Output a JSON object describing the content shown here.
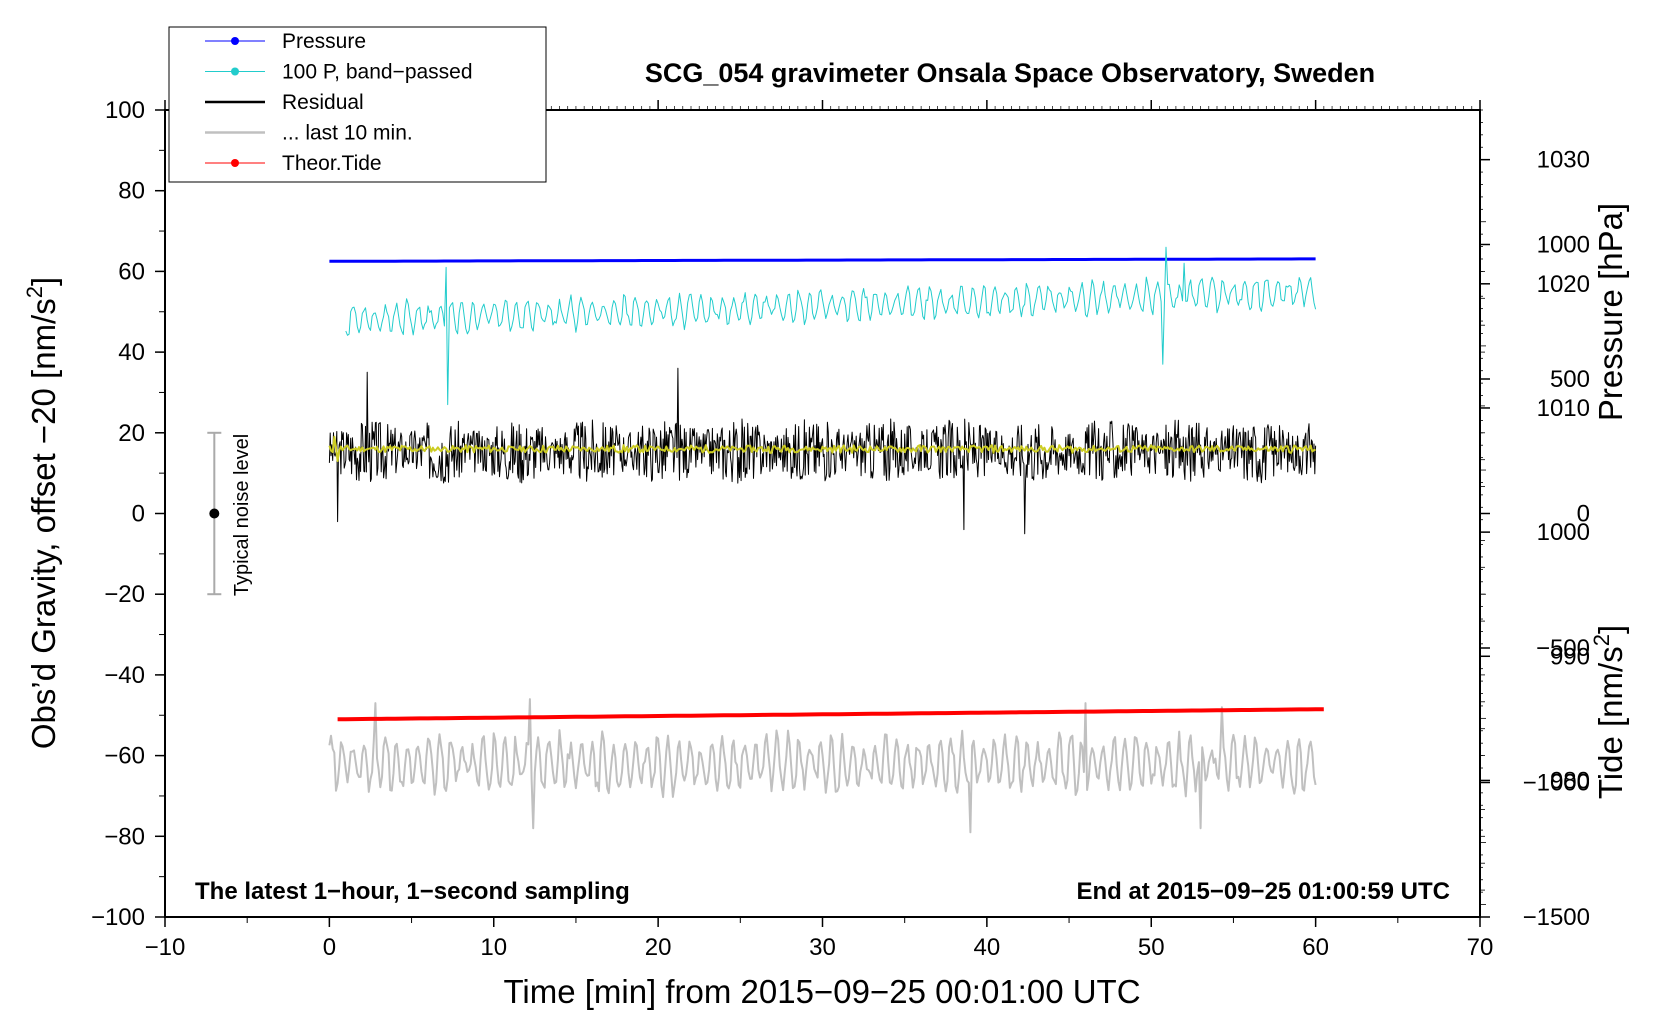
{
  "chart_data": {
    "type": "line",
    "title": "SCG_054 gravimeter Onsala Space Observatory, Sweden",
    "xlabel": "Time [min] from 2015−09−25 00:01:00 UTC",
    "ylabel_left": "Obs’d Gravity, offset −20 [nm/s",
    "ylabel_left_sup": "2",
    "ylabel_left_close": "]",
    "ylabel_pressure": "Pressure [hPa]",
    "ylabel_tide": "Tide [nm/s",
    "ylabel_tide_sup": "2",
    "ylabel_tide_close": "]",
    "xlim": [
      -10,
      70
    ],
    "ylim_left": [
      -100,
      100
    ],
    "pressure_range": [
      969,
      1034
    ],
    "tide_range": [
      -1500,
      1500
    ],
    "x_ticks": [
      -10,
      0,
      10,
      20,
      30,
      40,
      50,
      60,
      70
    ],
    "x_tick_labels": [
      "−10",
      "0",
      "10",
      "20",
      "30",
      "40",
      "50",
      "60",
      "70"
    ],
    "y_ticks_left": [
      -100,
      -80,
      -60,
      -40,
      -20,
      0,
      20,
      40,
      60,
      80,
      100
    ],
    "y_tick_labels_left": [
      "−100",
      "−80",
      "−60",
      "−40",
      "−20",
      "0",
      "20",
      "40",
      "60",
      "80",
      "100"
    ],
    "pressure_ticks": [
      980,
      990,
      1000,
      1010,
      1020,
      1030
    ],
    "pressure_tick_labels": [
      "980",
      "990",
      "1000",
      "1010",
      "1020",
      "1030"
    ],
    "tide_ticks": [
      -1500,
      -1000,
      -500,
      0,
      500,
      1000
    ],
    "tide_tick_labels": [
      "−1500",
      "−1000",
      "−500",
      "0",
      "500",
      "1000"
    ],
    "annotation_left": "The latest 1−hour, 1−second sampling",
    "annotation_right": "End at 2015−09−25 01:00:59 UTC",
    "noise_label": "Typical noise level",
    "noise_bar": {
      "x": -7,
      "center": 0,
      "low": -20,
      "high": 20
    },
    "legend": [
      {
        "label": "Pressure",
        "color": "#0000ff",
        "marker": true
      },
      {
        "label": "100 P, band−passed",
        "color": "#22cccc",
        "marker": true
      },
      {
        "label": "Residual",
        "color": "#000000",
        "marker": false
      },
      {
        "label": "... last 10 min.",
        "color": "#c0c0c0",
        "marker": false
      },
      {
        "label": "Theor.Tide",
        "color": "#ff0000",
        "marker": true
      }
    ],
    "series": [
      {
        "name": "Pressure",
        "color": "#0000ff",
        "width": 3,
        "kind": "linear",
        "x_start": 0,
        "x_end": 60,
        "y_start": 62.5,
        "y_end": 63.1,
        "noise": 0.1,
        "spikes": []
      },
      {
        "name": "100 P, band−passed",
        "color": "#22cccc",
        "width": 1,
        "kind": "oscillation",
        "x_start": 1,
        "x_end": 60,
        "step": 0.1,
        "base_start": 48,
        "base_end": 55,
        "amp": 4,
        "seed": 7,
        "spikes": [
          [
            7.2,
            27
          ],
          [
            7.1,
            61
          ],
          [
            50.9,
            66
          ],
          [
            50.7,
            37
          ],
          [
            52,
            62
          ]
        ]
      },
      {
        "name": "Residual",
        "color": "#000000",
        "width": 1,
        "kind": "noise",
        "x_start": 0,
        "x_end": 60,
        "step": 0.05,
        "base": 15.5,
        "amp": 8,
        "seed": 3,
        "spikes": [
          [
            2.3,
            35
          ],
          [
            21.2,
            36
          ],
          [
            42.3,
            -5
          ],
          [
            38.6,
            -4
          ],
          [
            0.5,
            -2
          ]
        ]
      },
      {
        "name": "Residual smoothed",
        "color": "#cccc22",
        "width": 2,
        "kind": "noise",
        "x_start": 0,
        "x_end": 60,
        "step": 0.1,
        "base": 16,
        "amp": 1,
        "seed": 11,
        "spikes": [
          [
            0.3,
            19
          ],
          [
            0.5,
            13
          ]
        ]
      },
      {
        "name": "... last 10 min.",
        "color": "#c0c0c0",
        "width": 2,
        "kind": "oscillation",
        "x_start": 0,
        "x_end": 60,
        "step": 0.1,
        "base_start": -62,
        "base_end": -62,
        "amp": 7,
        "seed": 5,
        "spikes": [
          [
            2.8,
            -47
          ],
          [
            12.4,
            -78
          ],
          [
            12.2,
            -46
          ],
          [
            39,
            -79
          ],
          [
            46,
            -47
          ],
          [
            53,
            -78
          ],
          [
            54.3,
            -48
          ]
        ]
      },
      {
        "name": "Theor.Tide",
        "color": "#ff0000",
        "width": 4,
        "kind": "linear",
        "x_start": 0.5,
        "x_end": 60.5,
        "y_start": -51,
        "y_end": -48.5,
        "noise": 0,
        "spikes": []
      }
    ]
  }
}
